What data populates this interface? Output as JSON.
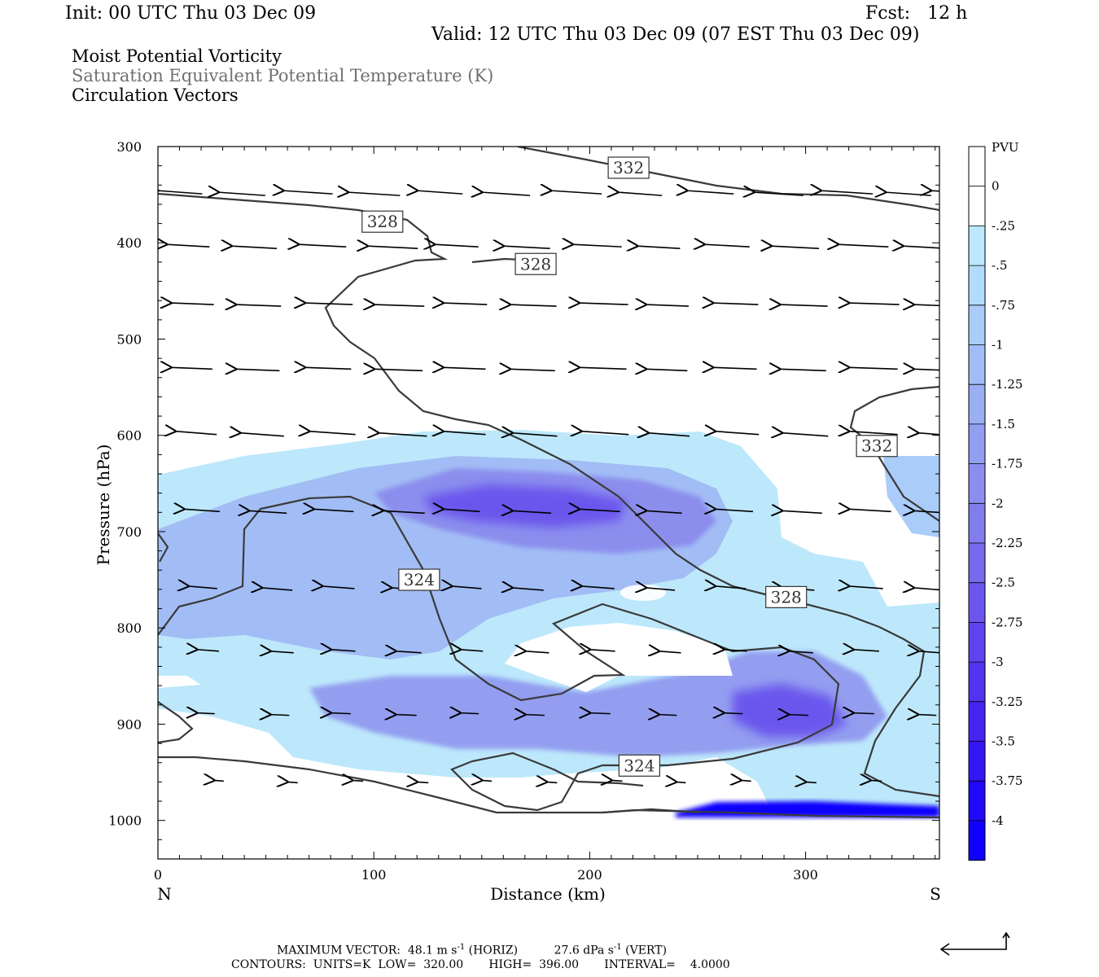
{
  "header": {
    "init": "Init: 00 UTC Thu 03 Dec 09",
    "fcst": "Fcst:   12 h",
    "valid": "Valid: 12 UTC Thu 03 Dec 09 (07 EST Thu 03 Dec 09)",
    "fields": [
      "Moist Potential Vorticity",
      "Saturation Equivalent Potential Temperature (K)",
      "Circulation Vectors"
    ]
  },
  "chart_data": {
    "type": "cross-section",
    "xlabel": "Distance (km)",
    "ylabel": "Pressure (hPa)",
    "xlim": [
      0,
      362
    ],
    "ylim": [
      1040,
      300
    ],
    "x_ticks": [
      0,
      100,
      200,
      300
    ],
    "y_ticks": [
      300,
      400,
      500,
      600,
      700,
      800,
      900,
      1000
    ],
    "end_labels": {
      "left": "N",
      "right": "S"
    },
    "colorbar": {
      "unit": "PVU",
      "labels": [
        "0",
        "-.25",
        "-.5",
        "-.75",
        "-1",
        "-1.25",
        "-1.5",
        "-1.75",
        "-2",
        "-2.25",
        "-2.5",
        "-2.75",
        "-3",
        "-3.25",
        "-3.5",
        "-3.75",
        "-4"
      ],
      "colors": [
        "#ffffff",
        "#ffffff",
        "#bde8fb",
        "#b2dcfb",
        "#a9ccf8",
        "#a2bdf5",
        "#9aaef2",
        "#939ef0",
        "#8c8eee",
        "#827ded",
        "#776aec",
        "#6b56ed",
        "#5f43ee",
        "#5333f0",
        "#4524f2",
        "#3516f5",
        "#2208f9",
        "#1000fd"
      ]
    },
    "contour_labels": [
      {
        "text": "332",
        "x": 218,
        "p": 322
      },
      {
        "text": "328",
        "x": 104,
        "p": 378
      },
      {
        "text": "328",
        "x": 175,
        "p": 422
      },
      {
        "text": "332",
        "x": 333,
        "p": 611
      },
      {
        "text": "324",
        "x": 121,
        "p": 750
      },
      {
        "text": "328",
        "x": 291,
        "p": 768
      },
      {
        "text": "324",
        "x": 223,
        "p": 943
      }
    ]
  },
  "footer": {
    "vector_label": "MAXIMUM VECTOR:",
    "vector_horiz": "48.1 m s",
    "vector_horiz_unit": "(HORIZ)",
    "vector_vert": "27.6 dPa s",
    "vector_vert_unit": "(VERT)",
    "exp": "-1",
    "contours": "CONTOURS:  UNITS=K  LOW=  320.00       HIGH=  396.00       INTERVAL=    4.0000"
  }
}
